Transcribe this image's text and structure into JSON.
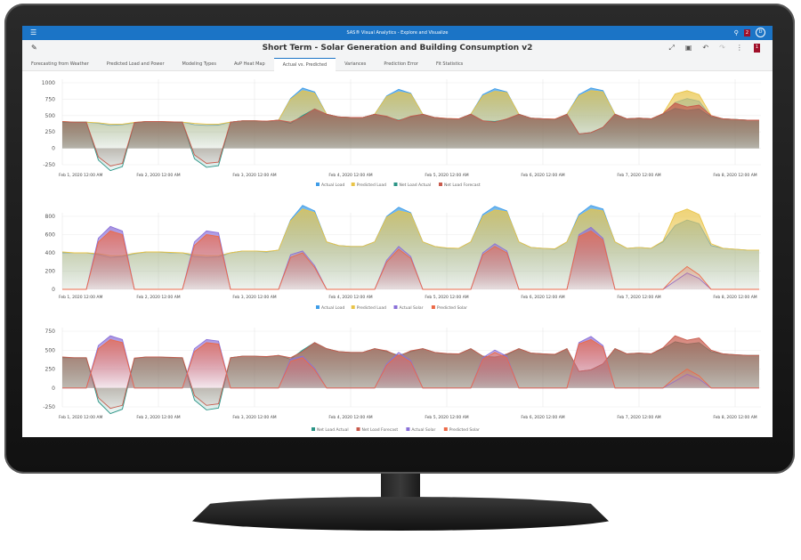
{
  "app": {
    "title": "SAS® Visual Analytics - Explore and Visualize",
    "notification_count": "2",
    "user_initial": "D",
    "page_badge": "1"
  },
  "report": {
    "title": "Short Term - Solar Generation and Building Consumption v2"
  },
  "tabs": [
    {
      "label": "Forecasting from Weather"
    },
    {
      "label": "Predicted Load and Power"
    },
    {
      "label": "Modeling Types"
    },
    {
      "label": "AvP Heat Map"
    },
    {
      "label": "Actual vs. Predicted",
      "active": true
    },
    {
      "label": "Variances"
    },
    {
      "label": "Prediction Error"
    },
    {
      "label": "Fit Statistics"
    }
  ],
  "icons": {
    "menu": "hamburger-icon",
    "edit": "pencil-icon",
    "search": "search-icon",
    "tools": [
      "maximize-icon",
      "layout-icon",
      "undo-icon",
      "redo-icon",
      "more-icon"
    ]
  },
  "colors": {
    "Actual Load": "#3f9de8",
    "Predicted Load": "#e9c448",
    "Net Load Actual": "#2b9486",
    "Net Load Forecast": "#c85a4c",
    "Actual Solar": "#8a70d8",
    "Predicted Solar": "#ec6a48",
    "accent": "#1b74c6"
  },
  "chart_data": [
    {
      "type": "area",
      "x_ticks": [
        "Feb 1, 2020 12:00 AM",
        "Feb 2, 2020 12:00 AM",
        "Feb 3, 2020 12:00 AM",
        "Feb 4, 2020 12:00 AM",
        "Feb 5, 2020 12:00 AM",
        "Feb 6, 2020 12:00 AM",
        "Feb 7, 2020 12:00 AM",
        "Feb 8, 2020 12:00 AM"
      ],
      "x_range": [
        "2020-02-01 00:00",
        "2020-02-08 06:00"
      ],
      "x_step_hours": 3,
      "ylim": [
        -250,
        1000
      ],
      "y_ticks": [
        -250,
        0,
        250,
        500,
        750,
        1000
      ],
      "grid": true,
      "legend": "bottom",
      "series": [
        {
          "name": "Actual Load",
          "values": [
            400,
            400,
            400,
            380,
            350,
            360,
            390,
            410,
            410,
            400,
            400,
            360,
            350,
            355,
            400,
            420,
            420,
            410,
            430,
            760,
            920,
            860,
            520,
            480,
            470,
            470,
            520,
            800,
            900,
            840,
            520,
            470,
            450,
            450,
            520,
            820,
            910,
            860,
            520,
            460,
            450,
            440,
            520,
            820,
            920,
            880,
            520,
            450,
            460,
            450,
            520,
            700,
            760,
            720,
            480,
            450,
            440,
            430,
            430
          ]
        },
        {
          "name": "Predicted Load",
          "values": [
            410,
            400,
            400,
            390,
            370,
            370,
            395,
            410,
            410,
            405,
            400,
            380,
            370,
            370,
            400,
            420,
            420,
            415,
            430,
            750,
            880,
            840,
            520,
            480,
            470,
            470,
            520,
            790,
            860,
            830,
            520,
            470,
            455,
            450,
            520,
            800,
            870,
            850,
            520,
            460,
            450,
            445,
            520,
            800,
            880,
            860,
            520,
            450,
            460,
            450,
            530,
            830,
            880,
            820,
            500,
            450,
            440,
            430,
            430
          ]
        },
        {
          "name": "Net Load Actual",
          "values": [
            400,
            400,
            400,
            -180,
            -340,
            -280,
            390,
            410,
            410,
            400,
            400,
            -160,
            -290,
            -265,
            400,
            420,
            420,
            410,
            430,
            380,
            500,
            600,
            520,
            480,
            470,
            470,
            520,
            480,
            430,
            480,
            520,
            470,
            450,
            450,
            520,
            420,
            410,
            440,
            520,
            460,
            450,
            440,
            520,
            220,
            240,
            320,
            520,
            450,
            460,
            450,
            520,
            610,
            580,
            600,
            480,
            450,
            440,
            430,
            430
          ]
        },
        {
          "name": "Net Load Forecast",
          "values": [
            410,
            400,
            400,
            -130,
            -270,
            -230,
            395,
            410,
            410,
            405,
            400,
            -100,
            -230,
            -210,
            400,
            420,
            420,
            415,
            430,
            400,
            480,
            600,
            520,
            480,
            470,
            470,
            520,
            490,
            420,
            490,
            520,
            470,
            455,
            450,
            520,
            420,
            400,
            450,
            520,
            460,
            450,
            445,
            520,
            220,
            240,
            320,
            520,
            450,
            460,
            450,
            530,
            690,
            630,
            660,
            500,
            450,
            440,
            430,
            430
          ]
        }
      ]
    },
    {
      "type": "area",
      "x_ticks": [
        "Feb 1, 2020 12:00 AM",
        "Feb 2, 2020 12:00 AM",
        "Feb 3, 2020 12:00 AM",
        "Feb 4, 2020 12:00 AM",
        "Feb 5, 2020 12:00 AM",
        "Feb 6, 2020 12:00 AM",
        "Feb 7, 2020 12:00 AM",
        "Feb 8, 2020 12:00 AM"
      ],
      "x_range": [
        "2020-02-01 00:00",
        "2020-02-08 06:00"
      ],
      "x_step_hours": 3,
      "ylim": [
        0,
        800
      ],
      "y_ticks": [
        0,
        200,
        400,
        600,
        800
      ],
      "grid": true,
      "legend": "bottom",
      "series": [
        {
          "name": "Actual Load",
          "values": [
            400,
            400,
            400,
            380,
            350,
            360,
            390,
            410,
            410,
            400,
            400,
            360,
            350,
            355,
            400,
            420,
            420,
            410,
            430,
            760,
            920,
            860,
            520,
            480,
            470,
            470,
            520,
            800,
            900,
            840,
            520,
            470,
            450,
            450,
            520,
            820,
            910,
            860,
            520,
            460,
            450,
            440,
            520,
            820,
            920,
            880,
            520,
            450,
            460,
            450,
            520,
            700,
            760,
            720,
            480,
            450,
            440,
            430,
            430
          ]
        },
        {
          "name": "Predicted Load",
          "values": [
            410,
            400,
            400,
            390,
            370,
            370,
            395,
            410,
            410,
            405,
            400,
            380,
            370,
            370,
            400,
            420,
            420,
            415,
            430,
            750,
            880,
            840,
            520,
            480,
            470,
            470,
            520,
            790,
            860,
            830,
            520,
            470,
            455,
            450,
            520,
            800,
            870,
            850,
            520,
            460,
            450,
            445,
            520,
            800,
            880,
            860,
            520,
            450,
            460,
            450,
            530,
            830,
            880,
            820,
            500,
            450,
            440,
            430,
            430
          ]
        },
        {
          "name": "Actual Solar",
          "values": [
            0,
            0,
            0,
            560,
            690,
            640,
            0,
            0,
            0,
            0,
            0,
            520,
            640,
            620,
            0,
            0,
            0,
            0,
            0,
            380,
            420,
            260,
            0,
            0,
            0,
            0,
            0,
            320,
            470,
            360,
            0,
            0,
            0,
            0,
            0,
            400,
            500,
            420,
            0,
            0,
            0,
            0,
            0,
            600,
            680,
            560,
            0,
            0,
            0,
            0,
            0,
            90,
            180,
            120,
            0,
            0,
            0,
            0,
            0
          ]
        },
        {
          "name": "Predicted Solar",
          "values": [
            0,
            0,
            0,
            520,
            640,
            600,
            0,
            0,
            0,
            0,
            0,
            480,
            600,
            580,
            0,
            0,
            0,
            0,
            0,
            350,
            400,
            240,
            0,
            0,
            0,
            0,
            0,
            300,
            440,
            340,
            0,
            0,
            0,
            0,
            0,
            380,
            470,
            400,
            0,
            0,
            0,
            0,
            0,
            580,
            640,
            540,
            0,
            0,
            0,
            0,
            0,
            140,
            250,
            160,
            0,
            0,
            0,
            0,
            0
          ]
        }
      ]
    },
    {
      "type": "area",
      "x_ticks": [
        "Feb 1, 2020 12:00 AM",
        "Feb 2, 2020 12:00 AM",
        "Feb 3, 2020 12:00 AM",
        "Feb 4, 2020 12:00 AM",
        "Feb 5, 2020 12:00 AM",
        "Feb 6, 2020 12:00 AM",
        "Feb 7, 2020 12:00 AM",
        "Feb 8, 2020 12:00 AM"
      ],
      "x_range": [
        "2020-02-01 00:00",
        "2020-02-08 06:00"
      ],
      "x_step_hours": 3,
      "ylim": [
        -250,
        750
      ],
      "y_ticks": [
        -250,
        0,
        250,
        500,
        750
      ],
      "grid": true,
      "legend": "bottom",
      "series": [
        {
          "name": "Net Load Actual",
          "values": [
            400,
            400,
            400,
            -180,
            -340,
            -280,
            390,
            410,
            410,
            400,
            400,
            -160,
            -290,
            -265,
            400,
            420,
            420,
            410,
            430,
            380,
            500,
            600,
            520,
            480,
            470,
            470,
            520,
            480,
            430,
            480,
            520,
            470,
            450,
            450,
            520,
            420,
            410,
            440,
            520,
            460,
            450,
            440,
            520,
            220,
            240,
            320,
            520,
            450,
            460,
            450,
            520,
            610,
            580,
            600,
            480,
            450,
            440,
            430,
            430
          ]
        },
        {
          "name": "Net Load Forecast",
          "values": [
            410,
            400,
            400,
            -130,
            -270,
            -230,
            395,
            410,
            410,
            405,
            400,
            -100,
            -230,
            -210,
            400,
            420,
            420,
            415,
            430,
            400,
            480,
            600,
            520,
            480,
            470,
            470,
            520,
            490,
            420,
            490,
            520,
            470,
            455,
            450,
            520,
            420,
            400,
            450,
            520,
            460,
            450,
            445,
            520,
            220,
            240,
            320,
            520,
            450,
            460,
            450,
            530,
            690,
            630,
            660,
            500,
            450,
            440,
            430,
            430
          ]
        },
        {
          "name": "Actual Solar",
          "values": [
            0,
            0,
            0,
            560,
            690,
            640,
            0,
            0,
            0,
            0,
            0,
            520,
            640,
            620,
            0,
            0,
            0,
            0,
            0,
            380,
            420,
            260,
            0,
            0,
            0,
            0,
            0,
            320,
            470,
            360,
            0,
            0,
            0,
            0,
            0,
            400,
            500,
            420,
            0,
            0,
            0,
            0,
            0,
            600,
            680,
            560,
            0,
            0,
            0,
            0,
            0,
            90,
            180,
            120,
            0,
            0,
            0,
            0,
            0
          ]
        },
        {
          "name": "Predicted Solar",
          "values": [
            0,
            0,
            0,
            520,
            640,
            600,
            0,
            0,
            0,
            0,
            0,
            480,
            600,
            580,
            0,
            0,
            0,
            0,
            0,
            350,
            400,
            240,
            0,
            0,
            0,
            0,
            0,
            300,
            440,
            340,
            0,
            0,
            0,
            0,
            0,
            380,
            470,
            400,
            0,
            0,
            0,
            0,
            0,
            580,
            640,
            540,
            0,
            0,
            0,
            0,
            0,
            140,
            250,
            160,
            0,
            0,
            0,
            0,
            0
          ]
        }
      ]
    }
  ]
}
